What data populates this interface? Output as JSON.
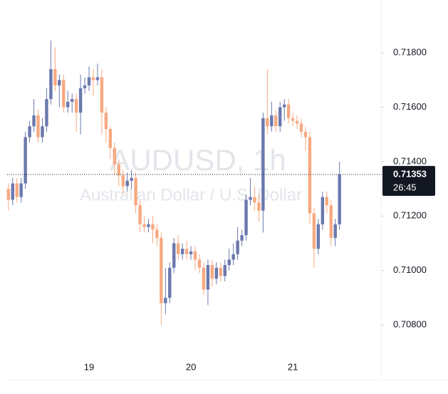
{
  "chart_data": {
    "type": "candlestick",
    "title": "AUDUSD, 1h",
    "subtitle": "Australian Dollar / U.S. Dollar",
    "categories": [
      null,
      null,
      null,
      null,
      null,
      null,
      null,
      null,
      null,
      null,
      null,
      null,
      null,
      null,
      null,
      null,
      null,
      null,
      null,
      "19",
      null,
      null,
      null,
      null,
      null,
      null,
      null,
      null,
      null,
      null,
      null,
      null,
      null,
      null,
      null,
      null,
      null,
      null,
      null,
      null,
      null,
      null,
      null,
      "20",
      null,
      null,
      null,
      null,
      null,
      null,
      null,
      null,
      null,
      null,
      null,
      null,
      null,
      null,
      null,
      null,
      null,
      null,
      null,
      null,
      null,
      null,
      null,
      "21",
      null,
      null,
      null,
      null,
      null,
      null,
      null,
      null,
      null,
      null,
      null
    ],
    "open": [
      0.713,
      0.7126,
      0.7132,
      0.7127,
      0.7132,
      0.7149,
      0.7153,
      0.7157,
      0.7149,
      0.7153,
      0.7163,
      0.7174,
      0.7168,
      0.717,
      0.716,
      0.7162,
      0.7163,
      0.7158,
      0.7167,
      0.7168,
      0.7171,
      0.717,
      0.7171,
      0.7158,
      0.7152,
      0.7145,
      0.7139,
      0.7135,
      0.7131,
      0.7133,
      0.7134,
      0.7124,
      0.7117,
      0.7116,
      0.7117,
      0.7115,
      0.7112,
      0.7088,
      0.709,
      0.7101,
      0.711,
      0.7106,
      0.7108,
      0.7106,
      0.7107,
      0.7104,
      0.7101,
      0.7093,
      0.7102,
      0.7097,
      0.7101,
      0.7098,
      0.7102,
      0.7104,
      0.7106,
      0.7111,
      0.7113,
      0.7126,
      0.7127,
      0.7125,
      0.7122,
      0.7156,
      0.7153,
      0.7157,
      0.7153,
      0.716,
      0.7161,
      0.7156,
      0.7155,
      0.7154,
      0.7151,
      0.7149,
      0.7121,
      0.7108,
      0.7117,
      0.7127,
      0.7124,
      0.7112,
      0.7117
    ],
    "high": [
      0.7132,
      0.7134,
      0.7134,
      0.7134,
      0.7151,
      0.7155,
      0.7163,
      0.7159,
      0.7156,
      0.7167,
      0.71845,
      0.7182,
      0.7172,
      0.7172,
      0.7166,
      0.7165,
      0.7165,
      0.7172,
      0.7171,
      0.7175,
      0.7174,
      0.7176,
      0.7174,
      0.716,
      0.7153,
      0.7147,
      0.7141,
      0.7137,
      0.7136,
      0.7137,
      0.7136,
      0.7126,
      0.712,
      0.7119,
      0.712,
      0.7117,
      0.7114,
      0.7101,
      0.7103,
      0.7112,
      0.7113,
      0.711,
      0.7111,
      0.7109,
      0.7109,
      0.7106,
      0.7103,
      0.7104,
      0.7104,
      0.7103,
      0.7103,
      0.7104,
      0.7108,
      0.711,
      0.7116,
      0.7115,
      0.7128,
      0.7134,
      0.7131,
      0.7128,
      0.7158,
      0.7174,
      0.7162,
      0.7159,
      0.7162,
      0.7163,
      0.7163,
      0.7158,
      0.7157,
      0.7156,
      0.7153,
      0.7151,
      0.7123,
      0.7119,
      0.7129,
      0.7129,
      0.7126,
      0.7119,
      0.714
    ],
    "low": [
      0.7122,
      0.7124,
      0.7125,
      0.7125,
      0.713,
      0.7147,
      0.7151,
      0.7147,
      0.7147,
      0.7151,
      0.7161,
      0.7166,
      0.716,
      0.7158,
      0.7158,
      0.7158,
      0.7151,
      0.715,
      0.7165,
      0.7166,
      0.7164,
      0.7168,
      0.715,
      0.7147,
      0.7141,
      0.7135,
      0.7131,
      0.7128,
      0.7129,
      0.713,
      0.7121,
      0.7114,
      0.7114,
      0.7114,
      0.711,
      0.7109,
      0.708,
      0.7084,
      0.7088,
      0.7099,
      0.7104,
      0.7104,
      0.7104,
      0.7104,
      0.71,
      0.7099,
      0.7091,
      0.70873,
      0.7094,
      0.7095,
      0.7096,
      0.7096,
      0.71,
      0.7102,
      0.7104,
      0.7109,
      0.7111,
      0.7124,
      0.7122,
      0.7118,
      0.7114,
      0.715,
      0.7151,
      0.7151,
      0.7151,
      0.7155,
      0.7154,
      0.7153,
      0.7152,
      0.7149,
      0.7144,
      0.7117,
      0.7101,
      0.7106,
      0.7115,
      0.7121,
      0.7109,
      0.7109,
      0.7115
    ],
    "close": [
      0.7126,
      0.7132,
      0.7127,
      0.7132,
      0.7149,
      0.7153,
      0.7157,
      0.7149,
      0.7153,
      0.7163,
      0.7174,
      0.7168,
      0.717,
      0.716,
      0.7162,
      0.7163,
      0.7158,
      0.7167,
      0.7168,
      0.7171,
      0.717,
      0.7171,
      0.7158,
      0.7152,
      0.7145,
      0.7139,
      0.7135,
      0.7131,
      0.7133,
      0.7134,
      0.7124,
      0.7117,
      0.7116,
      0.7117,
      0.7115,
      0.7112,
      0.7088,
      0.709,
      0.7101,
      0.711,
      0.7106,
      0.7108,
      0.7106,
      0.7107,
      0.7104,
      0.7101,
      0.7093,
      0.7102,
      0.7097,
      0.7101,
      0.7098,
      0.7102,
      0.7104,
      0.7106,
      0.7111,
      0.7113,
      0.7126,
      0.7127,
      0.7125,
      0.7122,
      0.7156,
      0.7153,
      0.7157,
      0.7153,
      0.716,
      0.7161,
      0.7156,
      0.7155,
      0.7154,
      0.7151,
      0.7149,
      0.7121,
      0.7108,
      0.7117,
      0.7127,
      0.7124,
      0.7112,
      0.7117,
      0.71353
    ],
    "up_color": "#6a78ad",
    "down_color": "#f7a981",
    "last_price": 0.71353,
    "countdown": "26:45",
    "ylim": [
      0.70672,
      0.71994
    ],
    "yticks": [
      {
        "value": 0.708,
        "label": "0.70800"
      },
      {
        "value": 0.71,
        "label": "0.71000"
      },
      {
        "value": 0.712,
        "label": "0.71200"
      },
      {
        "value": 0.714,
        "label": "0.71400"
      },
      {
        "value": 0.716,
        "label": "0.71600"
      },
      {
        "value": 0.718,
        "label": "0.71800"
      }
    ]
  }
}
